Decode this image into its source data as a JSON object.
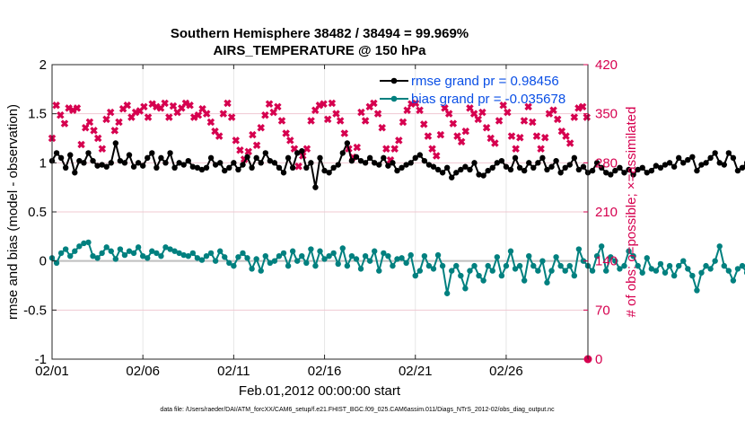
{
  "colors": {
    "rmse": "#000000",
    "bias": "#00807f",
    "obs": "#d6004f",
    "zero_line": "#bfbfbf",
    "grid": "#f0c8d2",
    "legend_text": "#0a4fe6"
  },
  "chart_data": {
    "type": "line",
    "title": "Southern Hemisphere 38482 / 38494 = 99.969%",
    "subtitle": "AIRS_TEMPERATURE @ 150 hPa",
    "xlabel": "Feb.01,2012 00:00:00 start",
    "ylabel_left": "rmse and bias (model - observation)",
    "ylabel_right": "# of obs: o=possible; ×=assimilated",
    "ylim_left": [
      -1,
      2
    ],
    "ylim_right": [
      0,
      420
    ],
    "x_range_days": [
      0,
      29.5
    ],
    "x_ticks": [
      0,
      5,
      10,
      15,
      20,
      25
    ],
    "x_tick_labels": [
      "02/01",
      "02/06",
      "02/11",
      "02/16",
      "02/21",
      "02/26"
    ],
    "y_ticks_left": [
      -1,
      -0.5,
      0,
      0.5,
      1,
      1.5,
      2
    ],
    "y_tick_labels_left": [
      "-1",
      "-0.5",
      "0",
      "0.5",
      "1",
      "1.5",
      "2"
    ],
    "y_ticks_right": [
      0,
      70,
      140,
      210,
      280,
      350,
      420
    ],
    "y_tick_labels_right": [
      "0",
      "70",
      "140",
      "210",
      "280",
      "350",
      "420"
    ],
    "legend": {
      "rmse": "rmse grand pr = 0.98456",
      "bias": "bias grand pr = -0.035678",
      "placement": "top-right"
    },
    "time_step_days": 0.25,
    "rmse": [
      1.02,
      1.1,
      1.05,
      0.95,
      1.08,
      0.9,
      1.02,
      1.0,
      1.1,
      1.02,
      0.97,
      0.98,
      0.96,
      1.0,
      1.2,
      1.02,
      1.0,
      1.08,
      0.96,
      1.0,
      0.97,
      1.05,
      1.1,
      0.95,
      1.05,
      1.0,
      1.1,
      0.95,
      1.0,
      0.98,
      1.02,
      0.96,
      0.95,
      0.93,
      0.95,
      1.05,
      0.98,
      1.0,
      0.92,
      0.95,
      1.0,
      0.93,
      0.98,
      1.06,
      0.95,
      1.05,
      1.0,
      1.1,
      1.02,
      1.0,
      0.95,
      0.9,
      1.05,
      0.95,
      1.1,
      1.12,
      0.95,
      1.0,
      0.75,
      1.05,
      0.92,
      0.9,
      0.95,
      0.98,
      1.1,
      1.2,
      1.02,
      1.06,
      1.02,
      1.0,
      1.05,
      1.0,
      0.98,
      1.05,
      0.97,
      1.0,
      0.92,
      0.95,
      0.98,
      1.0,
      1.05,
      1.08,
      1.02,
      0.98,
      0.96,
      0.93,
      0.9,
      0.95,
      0.85,
      0.9,
      0.93,
      0.96,
      0.93,
      1.0,
      0.88,
      0.87,
      0.92,
      0.95,
      1.0,
      1.02,
      0.96,
      0.93,
      1.05,
      0.95,
      0.92,
      1.0,
      0.95,
      1.0,
      1.05,
      0.93,
      0.96,
      1.02,
      0.9,
      0.95,
      0.98,
      1.05,
      0.93,
      0.96,
      0.9,
      0.92,
      1.0,
      0.95,
      0.9,
      0.88,
      0.92,
      0.95,
      0.9,
      0.93,
      0.88,
      0.93,
      0.95,
      0.9,
      0.92,
      0.97,
      0.95,
      0.98,
      1.0,
      0.96,
      1.05,
      1.0,
      1.03,
      1.06,
      0.92,
      0.98,
      1.0,
      1.05,
      1.1,
      1.0,
      0.98,
      1.1,
      1.05,
      0.92,
      0.95,
      1.0,
      1.03,
      0.92,
      1.1,
      1.27,
      1.05,
      0.95,
      1.0,
      1.05,
      0.96,
      1.0,
      0.98
    ],
    "bias": [
      0.03,
      -0.02,
      0.08,
      0.12,
      0.05,
      0.1,
      0.15,
      0.18,
      0.19,
      0.05,
      0.03,
      0.08,
      0.14,
      0.1,
      0.02,
      0.12,
      0.06,
      0.1,
      0.08,
      0.14,
      0.05,
      0.03,
      0.1,
      0.08,
      0.05,
      0.14,
      0.12,
      0.1,
      0.08,
      0.06,
      0.05,
      0.08,
      0.03,
      0.01,
      0.05,
      0.08,
      0.0,
      0.1,
      0.04,
      -0.02,
      -0.05,
      0.04,
      0.08,
      0.03,
      -0.08,
      0.02,
      -0.1,
      0.05,
      -0.02,
      0.0,
      0.05,
      0.08,
      -0.05,
      0.1,
      0.0,
      0.05,
      -0.02,
      0.12,
      -0.05,
      0.1,
      0.02,
      0.05,
      0.08,
      -0.03,
      0.13,
      -0.05,
      0.05,
      0.02,
      -0.08,
      0.05,
      0.0,
      0.1,
      -0.1,
      0.08,
      0.05,
      -0.05,
      0.02,
      0.03,
      -0.02,
      0.06,
      -0.15,
      -0.1,
      0.05,
      -0.05,
      -0.08,
      0.06,
      -0.05,
      -0.33,
      -0.1,
      -0.05,
      -0.15,
      -0.28,
      -0.1,
      -0.05,
      -0.15,
      -0.2,
      -0.05,
      -0.1,
      0.04,
      -0.15,
      -0.05,
      0.1,
      -0.08,
      -0.05,
      -0.2,
      0.05,
      -0.05,
      -0.1,
      0.0,
      -0.22,
      -0.1,
      0.04,
      -0.05,
      -0.1,
      -0.05,
      -0.15,
      0.12,
      0.0,
      -0.05,
      -0.1,
      0.05,
      0.15,
      -0.1,
      0.04,
      0.0,
      -0.08,
      -0.05,
      0.1,
      0.05,
      -0.05,
      -0.12,
      0.03,
      -0.08,
      -0.1,
      -0.03,
      -0.12,
      -0.05,
      -0.15,
      -0.05,
      0.0,
      -0.08,
      -0.15,
      -0.3,
      -0.12,
      -0.05,
      -0.08,
      0.0,
      0.15,
      -0.05,
      -0.1,
      -0.2,
      -0.08,
      -0.05,
      -0.12,
      -0.1,
      -0.05,
      0.0,
      -0.08,
      -0.15,
      0.0,
      -0.1,
      -0.2,
      -0.05,
      -0.35,
      -0.1,
      0.02,
      -0.12,
      -0.2,
      0.15,
      -0.05,
      -0.08
    ],
    "obs_assimilated_times": [
      0.0,
      0.23,
      0.46,
      0.69,
      0.92,
      1.15,
      1.38,
      1.61,
      1.84,
      2.07,
      2.3,
      2.53,
      2.76,
      2.99,
      3.22,
      3.45,
      3.68,
      3.91,
      4.14,
      4.37,
      4.6,
      4.83,
      5.06,
      5.29,
      5.52,
      5.75,
      5.98,
      6.21,
      6.44,
      6.67,
      6.9,
      7.13,
      7.36,
      7.59,
      7.82,
      8.05,
      8.28,
      8.51,
      8.74,
      8.97,
      9.2,
      9.43,
      9.66,
      9.89,
      10.12,
      10.35,
      10.58,
      10.81,
      11.04,
      11.27,
      11.5,
      11.73,
      11.96,
      12.19,
      12.42,
      12.65,
      12.88,
      13.11,
      13.34,
      13.57,
      13.8,
      14.03,
      14.26,
      14.49,
      14.72,
      14.95,
      15.18,
      15.41,
      15.64,
      15.87,
      16.1,
      16.33,
      16.56,
      16.79,
      17.02,
      17.25,
      17.48,
      17.71,
      17.94,
      18.17,
      18.4,
      18.63,
      18.86,
      19.09,
      19.32,
      19.55,
      19.78,
      20.01,
      20.24,
      20.47,
      20.7,
      20.93,
      21.16,
      21.39,
      21.62,
      21.85,
      22.08,
      22.31,
      22.54,
      22.77,
      23.0,
      23.23,
      23.46,
      23.69,
      23.92,
      24.15,
      24.38,
      24.61,
      24.84,
      25.07,
      25.3,
      25.53,
      25.76,
      25.99,
      26.22,
      26.45,
      26.68,
      26.91,
      27.14,
      27.37,
      27.6,
      27.83,
      28.06,
      28.29,
      28.52,
      28.75,
      28.98,
      29.21,
      29.44
    ],
    "obs_assimilated": [
      315,
      362,
      348,
      336,
      358,
      355,
      358,
      306,
      330,
      338,
      326,
      315,
      300,
      342,
      352,
      326,
      338,
      357,
      362,
      345,
      352,
      354,
      360,
      345,
      364,
      360,
      358,
      365,
      345,
      361,
      352,
      358,
      365,
      362,
      345,
      348,
      357,
      350,
      338,
      325,
      318,
      350,
      365,
      345,
      312,
      298,
      285,
      296,
      320,
      305,
      330,
      348,
      364,
      352,
      360,
      340,
      322,
      312,
      300,
      275,
      290,
      300,
      340,
      355,
      362,
      364,
      342,
      365,
      350,
      340,
      322,
      300,
      288,
      302,
      352,
      340,
      360,
      365,
      350,
      330,
      300,
      284,
      300,
      312,
      338,
      355,
      364,
      365,
      355,
      335,
      318,
      300,
      290,
      320,
      358,
      350,
      336,
      318,
      310,
      325,
      358,
      350,
      342,
      352,
      330,
      315,
      308,
      340,
      362,
      352,
      318,
      300,
      316,
      340,
      360,
      338,
      318,
      300,
      316,
      350,
      355,
      342,
      325,
      318,
      308,
      345,
      358,
      360,
      345
    ],
    "obs_possible_times": [
      29.5
    ],
    "obs_possible": [
      0
    ]
  },
  "footer": {
    "data_file": "data file: /Users/raeder/DAI/ATM_forcXX/CAM6_setup/f.e21.FHIST_BGC.f09_025.CAM6assim.011/Diags_NTrS_2012-02/obs_diag_output.nc"
  }
}
